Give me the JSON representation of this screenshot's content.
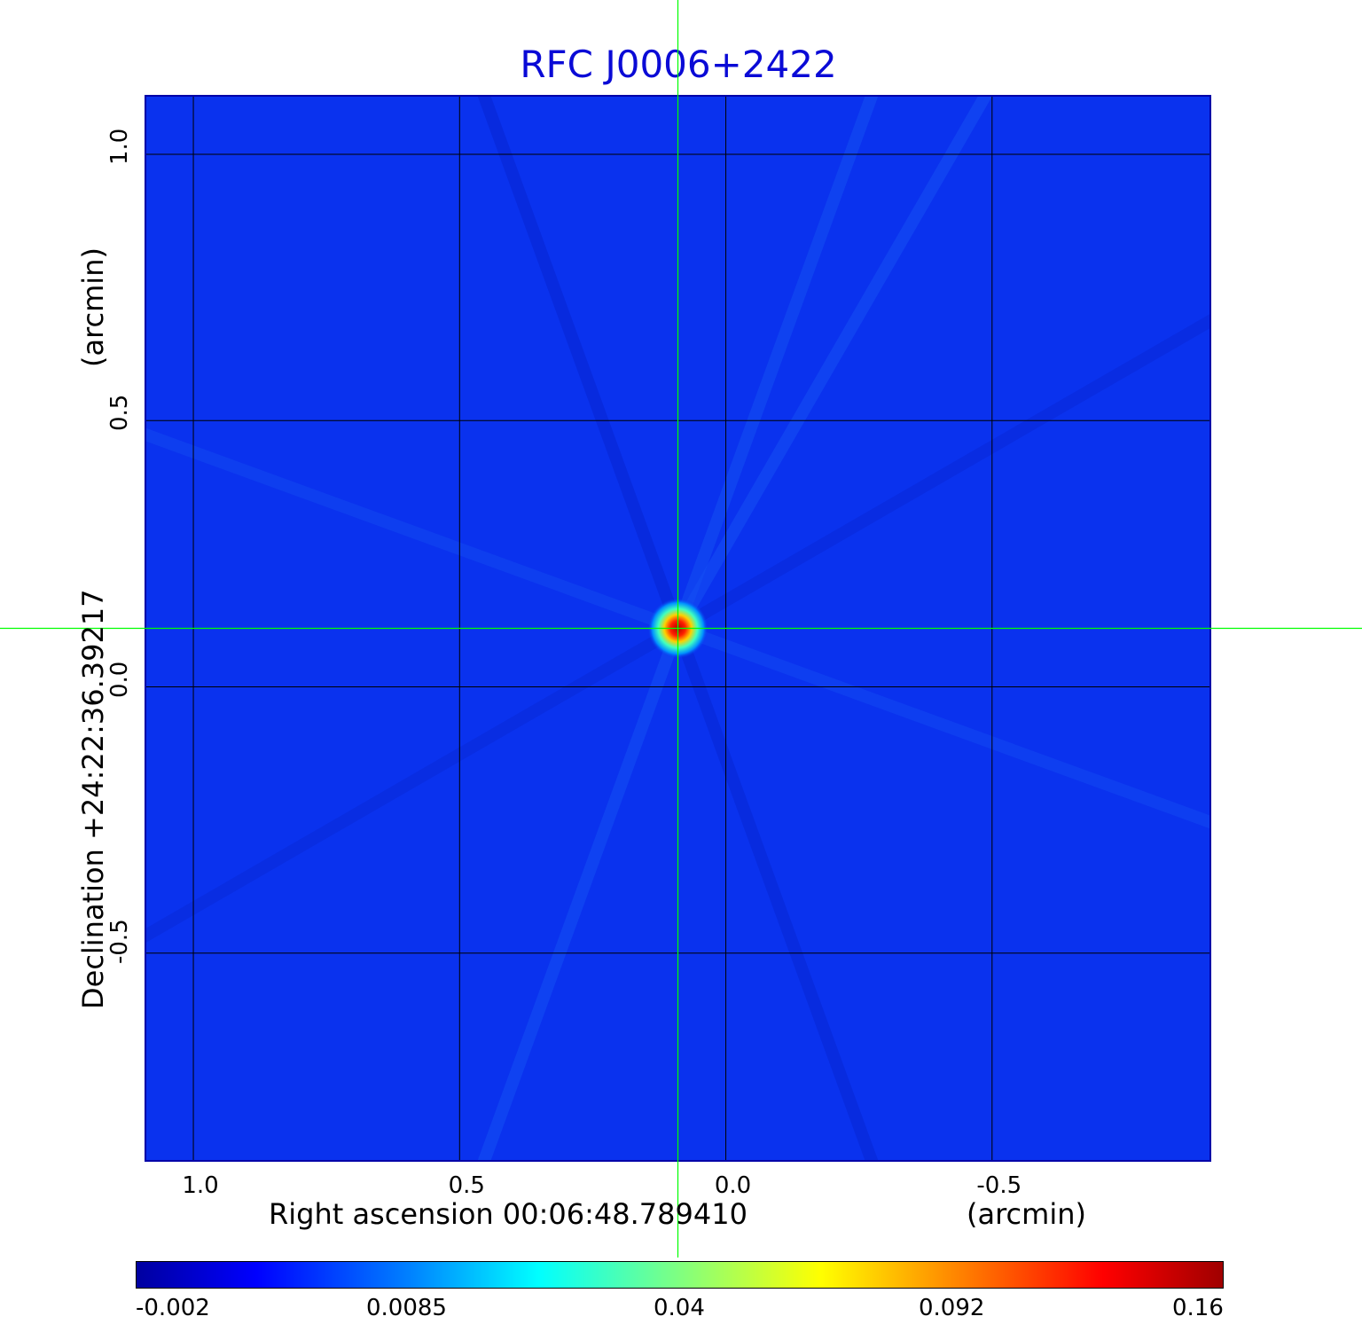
{
  "title": "RFC J0006+2422",
  "chart_data": {
    "type": "heatmap",
    "title": "RFC J0006+2422",
    "xlabel": "Right ascension  00:06:48.789410",
    "xlabel_unit": "(arcmin)",
    "ylabel": "Declination  +24:22:36.39217",
    "ylabel_unit": "(arcmin)",
    "x_ticks": [
      "1.0",
      "0.5",
      "0.0",
      "-0.5"
    ],
    "x_tick_values": [
      1.0,
      0.5,
      0.0,
      -0.5
    ],
    "y_ticks": [
      "1.0",
      "0.5",
      "0.0",
      "-0.5"
    ],
    "y_tick_values": [
      1.0,
      0.5,
      0.0,
      -0.5
    ],
    "xlim": [
      1.09,
      -0.91
    ],
    "ylim": [
      -0.89,
      1.11
    ],
    "grid": true,
    "crosshair": {
      "x": 0.09,
      "y": 0.11,
      "color": "#00ff00"
    },
    "source_peak": {
      "x": 0.09,
      "y": 0.11
    },
    "colorbar": {
      "ticks": [
        "-0.002",
        "0.0085",
        "0.04",
        "0.092",
        "0.16"
      ],
      "cmap": "jet"
    },
    "background_color": "#0a32ee"
  }
}
